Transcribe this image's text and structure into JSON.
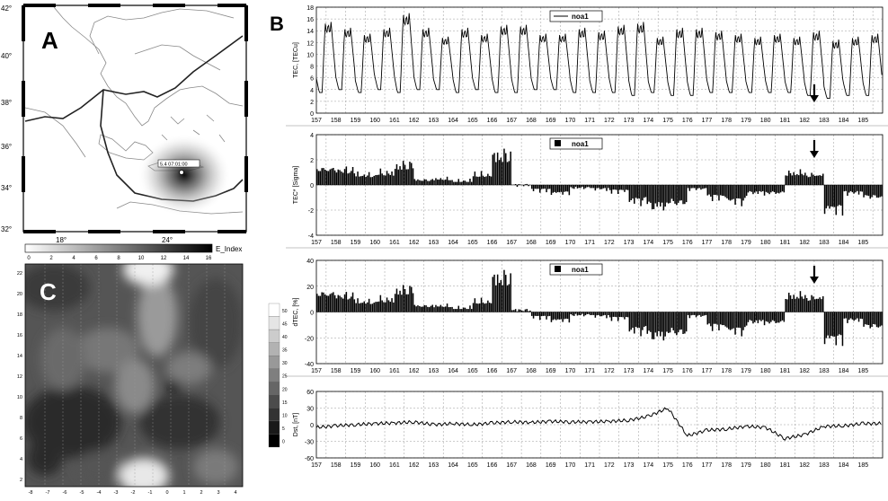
{
  "panels": {
    "a": {
      "letter": "A",
      "lat_labels": [
        "42°",
        "40°",
        "38°",
        "36°",
        "34°",
        "32°"
      ],
      "lon_labels": [
        "18°",
        "24°"
      ],
      "marker_label": "5.4 07:01:00"
    },
    "colorbar_a": {
      "ticks": [
        "0",
        "2",
        "4",
        "6",
        "8",
        "10",
        "12",
        "14",
        "16"
      ],
      "label": "E_Index"
    },
    "c": {
      "letter": "C",
      "y_ticks": [
        "22",
        "20",
        "18",
        "16",
        "14",
        "12",
        "10",
        "8",
        "6",
        "4",
        "2"
      ],
      "x_ticks": [
        "-8",
        "-7",
        "-6",
        "-5",
        "-4",
        "-3",
        "-2",
        "-1",
        "0",
        "1",
        "2",
        "3",
        "4"
      ]
    },
    "colorbar_c": {
      "ticks": [
        "50",
        "45",
        "40",
        "35",
        "30",
        "25",
        "20",
        "15",
        "10",
        "5",
        "0"
      ]
    },
    "b": {
      "letter": "B"
    }
  },
  "chart_data": [
    {
      "type": "line",
      "ylabel": "TEC, [TECu]",
      "legend": "noa1",
      "ylim": [
        0,
        18
      ],
      "yticks": [
        0,
        2,
        4,
        6,
        8,
        10,
        12,
        14,
        16,
        18
      ],
      "x_tick_labels": [
        "157",
        "158",
        "159",
        "160",
        "161",
        "162",
        "163",
        "164",
        "165",
        "166",
        "167",
        "168",
        "169",
        "170",
        "171",
        "172",
        "173",
        "174",
        "175",
        "176",
        "177",
        "178",
        "179",
        "180",
        "181",
        "182",
        "183",
        "184",
        "185"
      ],
      "xlim": [
        157,
        186
      ],
      "series": [
        {
          "name": "noa1",
          "description": "diurnal TEC cycle, night min ~3-4 TECu, day max 12-17 TECu",
          "daily_max": [
            15.5,
            14.5,
            13.5,
            14.5,
            17.0,
            14.5,
            13.0,
            14.5,
            13.5,
            15.0,
            15.0,
            13.5,
            13.5,
            14.5,
            14.0,
            15.0,
            15.5,
            13.0,
            14.5,
            14.5,
            14.0,
            13.5,
            13.0,
            13.5,
            13.0,
            14.0,
            12.5,
            13.0,
            13.5
          ],
          "daily_min": [
            3.5,
            4.0,
            3.5,
            4.0,
            3.5,
            4.0,
            4.0,
            3.5,
            4.0,
            3.5,
            3.5,
            4.0,
            4.0,
            3.5,
            3.5,
            3.5,
            3.0,
            3.5,
            3.0,
            3.0,
            3.5,
            3.5,
            3.5,
            3.5,
            3.5,
            3.0,
            2.5,
            3.0,
            3.0
          ]
        }
      ],
      "annotations": [
        {
          "type": "arrow",
          "x": 182.5
        }
      ]
    },
    {
      "type": "bar",
      "ylabel": "TEC* [Sigma]",
      "legend": "noa1",
      "ylim": [
        -4,
        4
      ],
      "yticks": [
        -4,
        -2,
        0,
        2,
        4
      ],
      "x_tick_labels": [
        "157",
        "158",
        "159",
        "160",
        "161",
        "162",
        "163",
        "164",
        "165",
        "166",
        "167",
        "168",
        "169",
        "170",
        "171",
        "172",
        "173",
        "174",
        "175",
        "176",
        "177",
        "178",
        "179",
        "180",
        "181",
        "182",
        "183",
        "184",
        "185"
      ],
      "xlim": [
        157,
        186
      ],
      "series": [
        {
          "name": "noa1",
          "daily_values": [
            1.6,
            1.5,
            1.0,
            1.2,
            2.0,
            0.5,
            0.6,
            0.4,
            1.0,
            3.0,
            0.0,
            -0.5,
            -0.8,
            -0.3,
            -0.4,
            -0.6,
            -1.6,
            -2.2,
            -1.8,
            -0.4,
            -1.2,
            -1.6,
            -0.8,
            -0.8,
            1.2,
            1.0,
            -2.4,
            -0.8,
            -1.2
          ]
        }
      ],
      "annotations": [
        {
          "type": "arrow",
          "x": 182.5
        }
      ]
    },
    {
      "type": "bar",
      "ylabel": "dTEC, [%]",
      "legend": "noa1",
      "ylim": [
        -40,
        40
      ],
      "yticks": [
        -40,
        -20,
        0,
        20,
        40
      ],
      "x_tick_labels": [
        "157",
        "158",
        "159",
        "160",
        "161",
        "162",
        "163",
        "164",
        "165",
        "166",
        "167",
        "168",
        "169",
        "170",
        "171",
        "172",
        "173",
        "174",
        "175",
        "176",
        "177",
        "178",
        "179",
        "180",
        "181",
        "182",
        "183",
        "184",
        "185"
      ],
      "xlim": [
        157,
        186
      ],
      "series": [
        {
          "name": "noa1",
          "daily_values": [
            18,
            16,
            10,
            12,
            22,
            6,
            6,
            4,
            10,
            34,
            2,
            -5,
            -8,
            -3,
            -4,
            -6,
            -18,
            -24,
            -20,
            -4,
            -14,
            -18,
            -10,
            -10,
            16,
            14,
            -26,
            -8,
            -14
          ]
        }
      ],
      "annotations": [
        {
          "type": "arrow",
          "x": 182.5
        }
      ]
    },
    {
      "type": "line",
      "ylabel": "Dst, [nT]",
      "ylim": [
        -60,
        60
      ],
      "yticks": [
        -60,
        -30,
        0,
        30,
        60
      ],
      "x_tick_labels": [
        "157",
        "158",
        "159",
        "160",
        "161",
        "162",
        "163",
        "164",
        "165",
        "166",
        "167",
        "168",
        "169",
        "170",
        "171",
        "172",
        "173",
        "174",
        "175",
        "176",
        "177",
        "178",
        "179",
        "180",
        "181",
        "182",
        "183",
        "184",
        "185"
      ],
      "xlim": [
        157,
        186
      ],
      "series": [
        {
          "name": "Dst",
          "daily_values": [
            -5,
            -2,
            0,
            2,
            3,
            5,
            0,
            2,
            0,
            3,
            5,
            4,
            6,
            5,
            5,
            6,
            8,
            15,
            30,
            -20,
            -10,
            -8,
            -3,
            -5,
            -25,
            -18,
            -3,
            -2,
            2
          ]
        }
      ]
    }
  ]
}
